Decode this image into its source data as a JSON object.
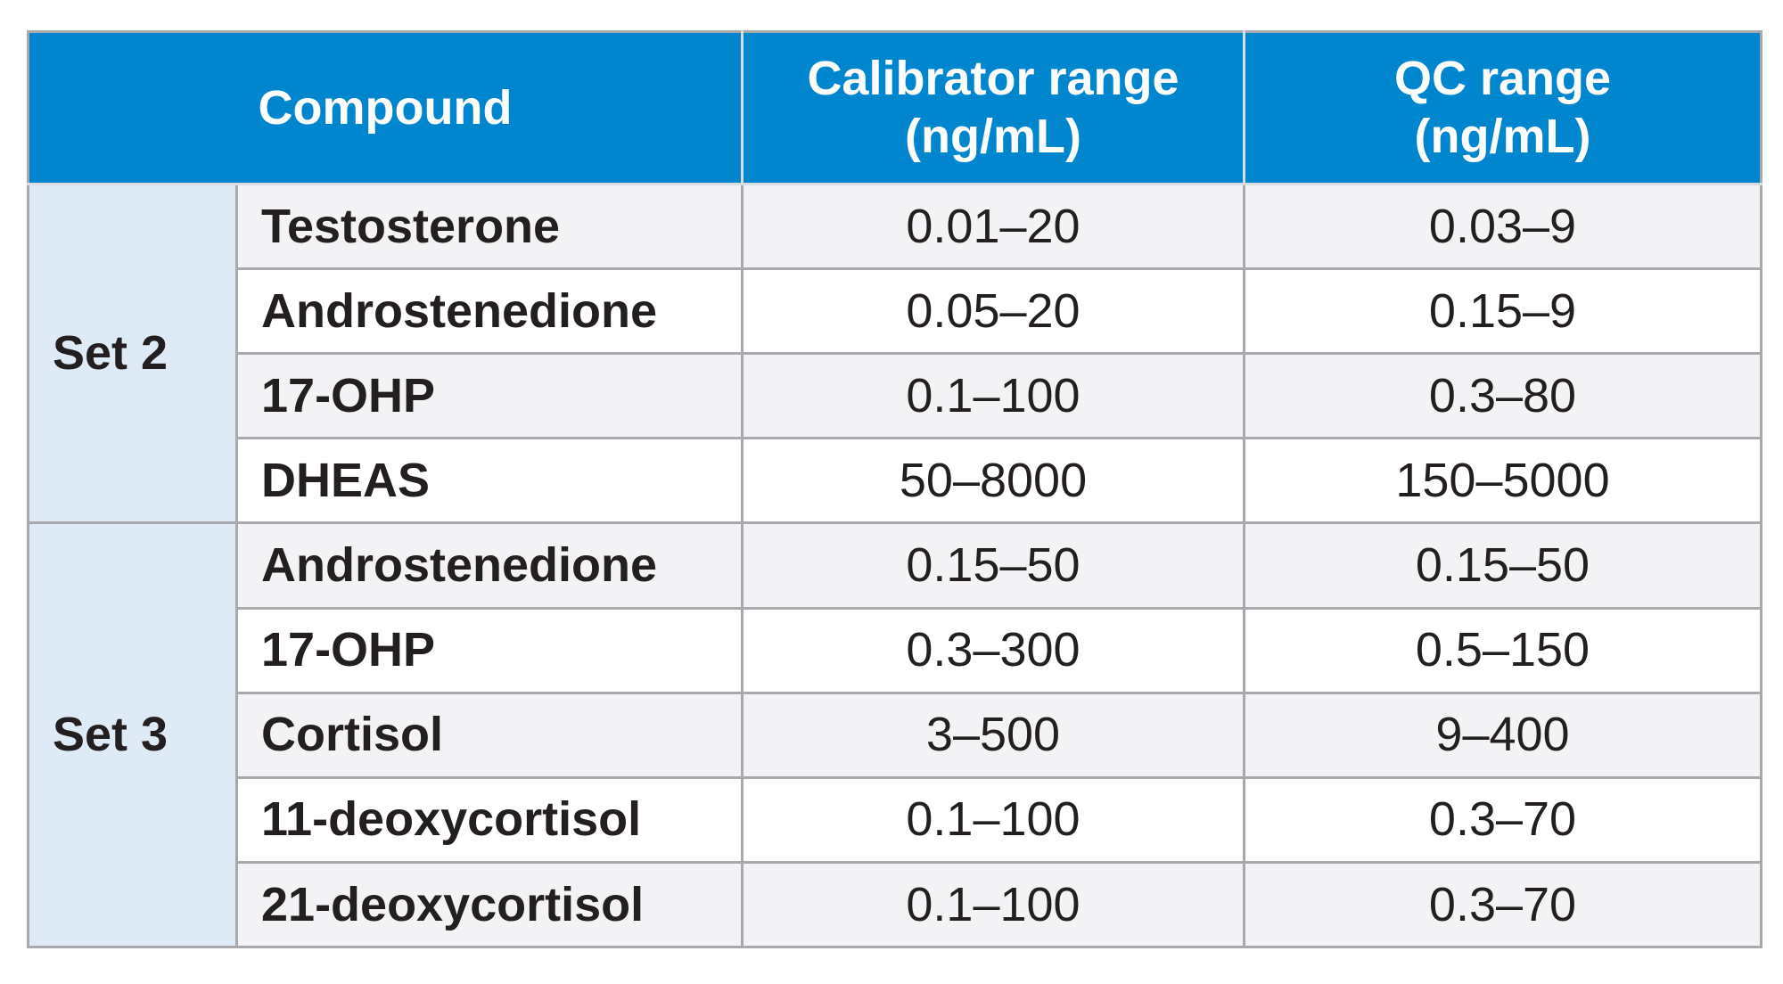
{
  "header": {
    "compound": "Compound",
    "calibrator_line1": "Calibrator range",
    "calibrator_line2": "(ng/mL)",
    "qc_line1": "QC range",
    "qc_line2": "(ng/mL)"
  },
  "sets": [
    {
      "label": "Set 2",
      "rows": [
        {
          "compound": "Testosterone",
          "calibrator": "0.01–20",
          "qc": "0.03–9"
        },
        {
          "compound": "Androstenedione",
          "calibrator": "0.05–20",
          "qc": "0.15–9"
        },
        {
          "compound": "17-OHP",
          "calibrator": "0.1–100",
          "qc": "0.3–80"
        },
        {
          "compound": "DHEAS",
          "calibrator": "50–8000",
          "qc": "150–5000"
        }
      ]
    },
    {
      "label": "Set 3",
      "rows": [
        {
          "compound": "Androstenedione",
          "calibrator": "0.15–50",
          "qc": "0.15–50"
        },
        {
          "compound": "17-OHP",
          "calibrator": "0.3–300",
          "qc": "0.5–150"
        },
        {
          "compound": "Cortisol",
          "calibrator": "3–500",
          "qc": "9–400"
        },
        {
          "compound": "11-deoxycortisol",
          "calibrator": "0.1–100",
          "qc": "0.3–70"
        },
        {
          "compound": "21-deoxycortisol",
          "calibrator": "0.1–100",
          "qc": "0.3–70"
        }
      ]
    }
  ],
  "colors": {
    "header_bg": "#0086cf",
    "header_text": "#ffffff",
    "set_cell_bg": "#deebf7",
    "shaded_row_bg": "#f3f3f5",
    "border": "#a7a9ac",
    "text": "#231f20"
  }
}
